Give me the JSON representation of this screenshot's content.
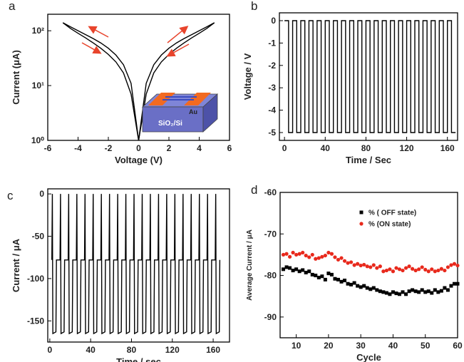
{
  "chart_data": [
    {
      "type": "line",
      "label": "a",
      "xlabel": "Voltage (V)",
      "ylabel": "Current (μA)",
      "log_y": true,
      "xlim": [
        -6,
        6
      ],
      "xticks": [
        -6,
        -4,
        -2,
        0,
        2,
        4,
        6
      ],
      "ylim": [
        1,
        200
      ],
      "yticks": [
        {
          "value": 1,
          "label": "10⁰"
        },
        {
          "value": 10,
          "label": "10¹"
        },
        {
          "value": 100,
          "label": "10²"
        }
      ],
      "annotations": [
        "Au",
        "SiO₂/Si"
      ],
      "x": [
        -5,
        -4.5,
        -4,
        -3.5,
        -3,
        -2.5,
        -2,
        -1.5,
        -1,
        -0.5,
        0,
        0.5,
        1,
        1.5,
        2,
        2.5,
        3,
        3.5,
        4,
        4.5,
        5
      ],
      "series": [
        {
          "color": "#000000",
          "values": [
            140,
            118,
            100,
            85,
            72,
            60,
            48,
            36,
            24,
            11,
            1,
            11,
            24,
            36,
            48,
            60,
            72,
            85,
            100,
            118,
            140
          ]
        },
        {
          "color": "#000000",
          "values": [
            140,
            110,
            90,
            74,
            60,
            48,
            37,
            27,
            17,
            7,
            1,
            7,
            17,
            27,
            37,
            48,
            60,
            74,
            90,
            110,
            140
          ]
        }
      ]
    },
    {
      "type": "line",
      "label": "b",
      "xlabel": "Time / Sec",
      "ylabel": "Voltage / V",
      "xlim": [
        -5,
        170
      ],
      "xticks": [
        0,
        40,
        80,
        120,
        160
      ],
      "ylim": [
        -5.35,
        0.35
      ],
      "yticks": [
        0,
        -1,
        -2,
        -3,
        -4,
        -5
      ],
      "x": [
        0,
        4,
        4,
        8,
        8,
        12,
        12,
        16,
        16,
        20,
        20,
        24,
        24,
        28,
        28,
        32,
        32,
        36,
        36,
        40,
        40,
        44,
        44,
        48,
        48,
        52,
        52,
        56,
        56,
        60,
        60,
        64,
        64,
        68,
        68,
        72,
        72,
        76,
        76,
        80,
        80,
        84,
        84,
        88,
        88,
        92,
        92,
        96,
        96,
        100,
        100,
        104,
        104,
        108,
        108,
        112,
        112,
        116,
        116,
        120,
        120,
        124,
        124,
        128,
        128,
        132,
        132,
        136,
        136,
        140,
        140,
        144,
        144,
        148,
        148,
        152,
        152,
        156,
        156,
        160,
        160,
        164,
        164,
        168
      ],
      "series": [
        {
          "color": "#000000",
          "values": [
            0,
            0,
            -5,
            -5,
            0,
            0,
            -5,
            -5,
            0,
            0,
            -5,
            -5,
            0,
            0,
            -5,
            -5,
            0,
            0,
            -5,
            -5,
            0,
            0,
            -5,
            -5,
            0,
            0,
            -5,
            -5,
            0,
            0,
            -5,
            -5,
            0,
            0,
            -5,
            -5,
            0,
            0,
            -5,
            -5,
            0,
            0,
            -5,
            -5,
            0,
            0,
            -5,
            -5,
            0,
            0,
            -5,
            -5,
            0,
            0,
            -5,
            -5,
            0,
            0,
            -5,
            -5,
            0,
            0,
            -5,
            -5,
            0,
            0,
            -5,
            -5,
            0,
            0,
            -5,
            -5,
            0,
            0,
            -5,
            -5,
            0,
            0,
            -5,
            -5,
            0,
            0,
            -5,
            -5
          ]
        }
      ]
    },
    {
      "type": "line",
      "label": "c",
      "xlabel": "Time / sec",
      "ylabel": "Current / μA",
      "xlim": [
        -2,
        176
      ],
      "xticks": [
        0,
        40,
        80,
        120,
        160
      ],
      "ylim": [
        -175,
        6
      ],
      "yticks": [
        0,
        -50,
        -100,
        -150
      ],
      "x": [
        2,
        2.5,
        3,
        6,
        6.5,
        10,
        10.5,
        11,
        14,
        14.5,
        18,
        18.5,
        19,
        22,
        22.5,
        26,
        26.5,
        27,
        30,
        30.5,
        34,
        34.5,
        35,
        38,
        38.5,
        42,
        42.5,
        43,
        46,
        46.5,
        50,
        50.5,
        51,
        54,
        54.5,
        58,
        58.5,
        59,
        62,
        62.5,
        66,
        66.5,
        67,
        70,
        70.5,
        74,
        74.5,
        75,
        78,
        78.5,
        82,
        82.5,
        83,
        86,
        86.5,
        90,
        90.5,
        91,
        94,
        94.5,
        98,
        98.5,
        99,
        102,
        102.5,
        106,
        106.5,
        107,
        110,
        110.5,
        114,
        114.5,
        115,
        118,
        118.5,
        122,
        122.5,
        123,
        126,
        126.5,
        130,
        130.5,
        131,
        134,
        134.5,
        138,
        138.5,
        139,
        142,
        142.5,
        146,
        146.5,
        147,
        150,
        150.5,
        154,
        154.5,
        155,
        158,
        158.5,
        162,
        162.5,
        163,
        166,
        166.5
      ],
      "series": [
        {
          "color": "#000000",
          "values": [
            -78,
            0,
            -165,
            -163,
            -78,
            -78,
            0,
            -165,
            -163,
            -78,
            -78,
            0,
            -165,
            -163,
            -78,
            -78,
            0,
            -165,
            -163,
            -78,
            -78,
            0,
            -165,
            -163,
            -78,
            -78,
            0,
            -165,
            -163,
            -78,
            -78,
            0,
            -165,
            -163,
            -78,
            -78,
            0,
            -165,
            -163,
            -78,
            -78,
            0,
            -165,
            -163,
            -78,
            -78,
            0,
            -165,
            -163,
            -78,
            -78,
            0,
            -165,
            -163,
            -78,
            -78,
            0,
            -165,
            -163,
            -78,
            -78,
            0,
            -165,
            -163,
            -78,
            -78,
            0,
            -165,
            -163,
            -78,
            -78,
            0,
            -165,
            -163,
            -78,
            -78,
            0,
            -165,
            -163,
            -78,
            -78,
            0,
            -165,
            -163,
            -78,
            -78,
            0,
            -165,
            -163,
            -78,
            -78,
            0,
            -165,
            -163,
            -78,
            -78,
            0,
            -165,
            -163,
            -78,
            -78,
            0,
            -165,
            -163,
            -78
          ]
        }
      ]
    },
    {
      "type": "scatter",
      "label": "d",
      "xlabel": "Cycle",
      "ylabel": "Average Current / μA",
      "legend": "upper right",
      "xlim": [
        5,
        60
      ],
      "xticks": [
        10,
        20,
        30,
        40,
        50,
        60
      ],
      "ylim": [
        -95,
        -60
      ],
      "yticks": [
        -60,
        -70,
        -80,
        -90
      ],
      "x": [
        6,
        7,
        8,
        9,
        10,
        11,
        12,
        13,
        14,
        15,
        16,
        17,
        18,
        19,
        20,
        21,
        22,
        23,
        24,
        25,
        26,
        27,
        28,
        29,
        30,
        31,
        32,
        33,
        34,
        35,
        36,
        37,
        38,
        39,
        40,
        41,
        42,
        43,
        44,
        45,
        46,
        47,
        48,
        49,
        50,
        51,
        52,
        53,
        54,
        55,
        56,
        57,
        58,
        59,
        60
      ],
      "series": [
        {
          "name": "% ( OFF state)",
          "color": "#000000",
          "marker": "square",
          "values": [
            -78.5,
            -78,
            -78.2,
            -78.8,
            -78.5,
            -79,
            -78.7,
            -79.3,
            -79,
            -79.8,
            -80,
            -80.5,
            -80.2,
            -81,
            -79.5,
            -79.8,
            -80.8,
            -81,
            -81.5,
            -81.2,
            -82,
            -82.2,
            -81.8,
            -82.5,
            -82.8,
            -82.5,
            -83,
            -83.3,
            -83,
            -83.5,
            -83.8,
            -84,
            -84.2,
            -84.5,
            -84,
            -84.3,
            -84.5,
            -84,
            -84.5,
            -83.8,
            -83.5,
            -83.8,
            -84,
            -83.5,
            -84,
            -83.8,
            -84.2,
            -83.5,
            -84,
            -83.7,
            -83,
            -83.5,
            -82.5,
            -82,
            -82
          ]
        },
        {
          "name": "% (ON state)",
          "color": "#e8291c",
          "marker": "circle",
          "values": [
            -75,
            -74.8,
            -75.5,
            -74.5,
            -75,
            -74.8,
            -74.5,
            -75.2,
            -75.6,
            -75,
            -76,
            -75.8,
            -75.5,
            -75.2,
            -74.5,
            -74.8,
            -75.6,
            -76.2,
            -75.8,
            -76.5,
            -77,
            -76.8,
            -77.5,
            -77.2,
            -77.6,
            -77.4,
            -77.8,
            -78,
            -77.5,
            -78.2,
            -77.8,
            -79,
            -78.8,
            -78.5,
            -79,
            -78.2,
            -78.5,
            -78.8,
            -78.2,
            -77.8,
            -78.4,
            -78.8,
            -78.5,
            -78,
            -78.6,
            -79,
            -78.5,
            -79,
            -78.8,
            -78.4,
            -78.8,
            -78,
            -77.5,
            -77.2,
            -77.6
          ]
        }
      ]
    }
  ]
}
